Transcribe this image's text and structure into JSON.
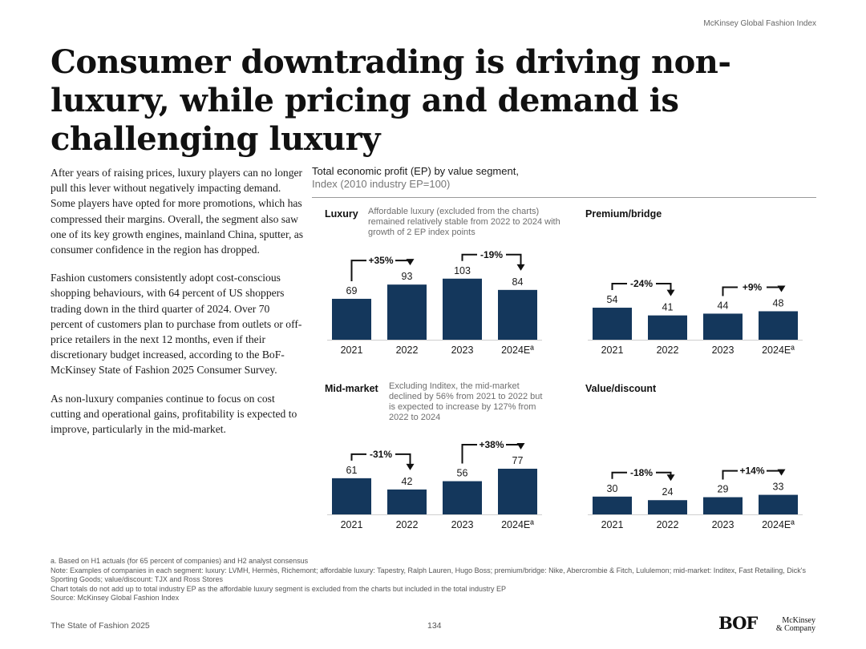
{
  "header": {
    "index_label": "McKinsey Global Fashion Index"
  },
  "title": "Consumer downtrading is driving non-luxury, while pricing and demand is challenging luxury",
  "body": {
    "paragraphs": [
      "After years of raising prices, luxury players can no longer pull this lever without negatively impacting demand. Some players have opted for more promotions, which has compressed their margins. Overall, the segment also saw one of its key growth engines, mainland China, sputter, as consumer confidence in the region has dropped.",
      "Fashion customers consistently adopt cost-conscious shopping behaviours, with 64 percent of US shoppers trading down in the third quarter of 2024. Over 70 percent of customers plan to purchase from outlets or off-price retailers in the next 12 months, even if their discretionary budget increased, according to the BoF-McKinsey State of Fashion 2025 Consumer Survey.",
      "As non-luxury companies continue to focus on cost cutting and operational gains, profitability is expected to improve, particularly in the mid-market."
    ]
  },
  "chart_header": {
    "title": "Total economic profit (EP) by value segment,",
    "subtitle": "Index (2010 industry EP=100)"
  },
  "colors": {
    "bar": "#14375c",
    "text": "#1a1a1a",
    "note": "#6e6e6e"
  },
  "chart_data": [
    {
      "type": "bar",
      "title": "Luxury",
      "note": "Affordable luxury (excluded from the charts) remained relatively stable from 2022 to 2024 with growth of 2 EP index points",
      "categories": [
        "2021",
        "2022",
        "2023",
        "2024Eª"
      ],
      "values": [
        69,
        93,
        103,
        84
      ],
      "changes": [
        {
          "from": 0,
          "to": 1,
          "label": "+35%"
        },
        {
          "from": 2,
          "to": 3,
          "label": "-19%"
        }
      ]
    },
    {
      "type": "bar",
      "title": "Premium/bridge",
      "note": "",
      "categories": [
        "2021",
        "2022",
        "2023",
        "2024Eª"
      ],
      "values": [
        54,
        41,
        44,
        48
      ],
      "changes": [
        {
          "from": 0,
          "to": 1,
          "label": "-24%"
        },
        {
          "from": 2,
          "to": 3,
          "label": "+9%"
        }
      ]
    },
    {
      "type": "bar",
      "title": "Mid-market",
      "note": "Excluding Inditex, the mid-market declined by 56% from 2021 to 2022 but is expected to increase by 127% from 2022 to 2024",
      "categories": [
        "2021",
        "2022",
        "2023",
        "2024Eª"
      ],
      "values": [
        61,
        42,
        56,
        77
      ],
      "changes": [
        {
          "from": 0,
          "to": 1,
          "label": "-31%"
        },
        {
          "from": 2,
          "to": 3,
          "label": "+38%"
        }
      ]
    },
    {
      "type": "bar",
      "title": "Value/discount",
      "note": "",
      "categories": [
        "2021",
        "2022",
        "2023",
        "2024Eª"
      ],
      "values": [
        30,
        24,
        29,
        33
      ],
      "changes": [
        {
          "from": 0,
          "to": 1,
          "label": "-18%"
        },
        {
          "from": 2,
          "to": 3,
          "label": "+14%"
        }
      ]
    }
  ],
  "footnotes": [
    "a. Based on H1 actuals (for 65 percent of companies) and H2 analyst consensus",
    "Note: Examples of companies in each segment: luxury: LVMH, Hermès, Richemont; affordable luxury: Tapestry, Ralph Lauren, Hugo Boss; premium/bridge: Nike, Abercrombie & Fitch, Lululemon; mid-market: Inditex, Fast Retailing, Dick's Sporting Goods; value/discount: TJX and Ross Stores",
    "Chart totals do not add up to total industry EP as the affordable luxury segment is excluded from the charts but included in the total industry EP",
    "Source: McKinsey Global Fashion Index"
  ],
  "footer": {
    "publication": "The State of Fashion 2025",
    "page_number": "134",
    "logo_bof": "BOF",
    "logo_mckinsey_line1": "McKinsey",
    "logo_mckinsey_line2": "& Company"
  }
}
